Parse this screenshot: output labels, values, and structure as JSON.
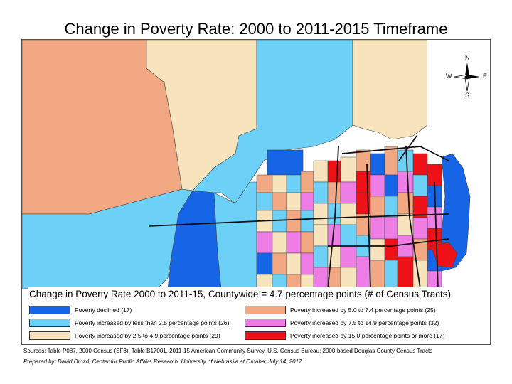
{
  "title": "Change in Poverty Rate: 2000 to 2011-2015 Timeframe",
  "compass": {
    "n": "N",
    "s": "S",
    "e": "E",
    "w": "W"
  },
  "legend": {
    "title": "Change in Poverty Rate 2000 to 2011-15, Countywide = 4.7 percentage points (# of Census Tracts)",
    "items": [
      {
        "label": "Poverty declined (17)",
        "color": "#1565e6"
      },
      {
        "label": "Poverty increased by less than 2.5 percentage points (26)",
        "color": "#6dd0f7"
      },
      {
        "label": "Poverty increased by 2.5 to 4.9 percentage points (29)",
        "color": "#f7e4bd"
      },
      {
        "label": "Poverty increased by 5.0 to 7.4 percentage points (25)",
        "color": "#f2a983"
      },
      {
        "label": "Poverty increased by 7.5 to 14.9 percentage points (32)",
        "color": "#ee7de6"
      },
      {
        "label": "Poverty increased by 15.0 percentage points or more (17)",
        "color": "#ee1118"
      }
    ]
  },
  "sources": "Sources: Table P087, 2000 Census (SF3); Table B17001, 2011-15 American Community Survey, U.S. Census Bureau; 2000-based Douglas County Census Tracts",
  "credit": "Prepared by: David Drozd, Center for Public Affairs Research, University of Nebraska at Omaha; July 14, 2017"
}
